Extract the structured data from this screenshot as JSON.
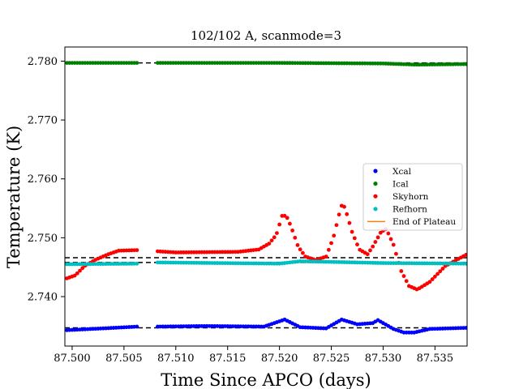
{
  "chart_data": {
    "type": "scatter",
    "title": "102/102 A, scanmode=3",
    "xlabel": "Time Since APCO (days)",
    "ylabel": "Temperature (K)",
    "xlim": [
      87.4993,
      87.5381
    ],
    "ylim": [
      2.7316,
      2.7824
    ],
    "xticks": [
      87.5,
      87.505,
      87.51,
      87.515,
      87.52,
      87.525,
      87.53,
      87.535
    ],
    "xtick_labels": [
      "87.500",
      "87.505",
      "87.510",
      "87.515",
      "87.520",
      "87.525",
      "87.530",
      "87.535"
    ],
    "yticks": [
      2.74,
      2.75,
      2.76,
      2.77,
      2.78
    ],
    "ytick_labels": [
      "2.740",
      "2.750",
      "2.760",
      "2.770",
      "2.780"
    ],
    "grid": false,
    "legend_position": "center-right",
    "x_range": [
      87.4995,
      87.5381
    ],
    "gap": [
      87.5063,
      87.5082
    ],
    "series": [
      {
        "name": "Xcal",
        "color": "#0000ff",
        "kind": "points",
        "keyframes": [
          [
            87.4995,
            2.7343
          ],
          [
            87.503,
            2.7346
          ],
          [
            87.5063,
            2.7349
          ],
          [
            87.5082,
            2.7349
          ],
          [
            87.513,
            2.735
          ],
          [
            87.5185,
            2.7349
          ],
          [
            87.5205,
            2.7361
          ],
          [
            87.522,
            2.7348
          ],
          [
            87.5245,
            2.7346
          ],
          [
            87.526,
            2.7361
          ],
          [
            87.5275,
            2.7353
          ],
          [
            87.529,
            2.7355
          ],
          [
            87.5295,
            2.736
          ],
          [
            87.531,
            2.7345
          ],
          [
            87.532,
            2.7339
          ],
          [
            87.533,
            2.7339
          ],
          [
            87.5345,
            2.7345
          ],
          [
            87.5381,
            2.7347
          ]
        ]
      },
      {
        "name": "Ical",
        "color": "#008000",
        "kind": "points",
        "keyframes": [
          [
            87.4995,
            2.7797
          ],
          [
            87.5063,
            2.7797
          ],
          [
            87.5082,
            2.7797
          ],
          [
            87.52,
            2.7797
          ],
          [
            87.53,
            2.7796
          ],
          [
            87.5332,
            2.7794
          ],
          [
            87.5381,
            2.7795
          ]
        ]
      },
      {
        "name": "Skyhorn",
        "color": "#ff0000",
        "kind": "points",
        "keyframes": [
          [
            87.4995,
            2.7431
          ],
          [
            87.5003,
            2.7436
          ],
          [
            87.5012,
            2.7452
          ],
          [
            87.5023,
            2.7463
          ],
          [
            87.5035,
            2.7472
          ],
          [
            87.5045,
            2.7478
          ],
          [
            87.5063,
            2.7479
          ],
          [
            87.5082,
            2.7477
          ],
          [
            87.51,
            2.7475
          ],
          [
            87.516,
            2.7476
          ],
          [
            87.518,
            2.748
          ],
          [
            87.519,
            2.749
          ],
          [
            87.5197,
            2.7505
          ],
          [
            87.5203,
            2.754
          ],
          [
            87.5208,
            2.7533
          ],
          [
            87.5213,
            2.751
          ],
          [
            87.5218,
            2.7485
          ],
          [
            87.5225,
            2.7468
          ],
          [
            87.5235,
            2.7462
          ],
          [
            87.5245,
            2.7468
          ],
          [
            87.5252,
            2.75
          ],
          [
            87.5258,
            2.7543
          ],
          [
            87.5261,
            2.756
          ],
          [
            87.5265,
            2.754
          ],
          [
            87.527,
            2.751
          ],
          [
            87.5277,
            2.748
          ],
          [
            87.5285,
            2.7472
          ],
          [
            87.529,
            2.7485
          ],
          [
            87.5298,
            2.751
          ],
          [
            87.5303,
            2.7515
          ],
          [
            87.531,
            2.7488
          ],
          [
            87.5317,
            2.7445
          ],
          [
            87.5325,
            2.7418
          ],
          [
            87.5333,
            2.7412
          ],
          [
            87.5345,
            2.7425
          ],
          [
            87.536,
            2.7452
          ],
          [
            87.5381,
            2.7472
          ]
        ]
      },
      {
        "name": "Refhorn",
        "color": "#00bfbf",
        "kind": "points",
        "keyframes": [
          [
            87.4995,
            2.7455
          ],
          [
            87.5063,
            2.7456
          ],
          [
            87.5082,
            2.7458
          ],
          [
            87.52,
            2.7456
          ],
          [
            87.522,
            2.746
          ],
          [
            87.53,
            2.7457
          ],
          [
            87.5381,
            2.7456
          ]
        ]
      },
      {
        "name": "End of Plateau",
        "color": "#ff7f0e",
        "kind": "line"
      }
    ],
    "reference_lines": [
      {
        "y": 2.7797,
        "color": "#000000",
        "style": "dashed"
      },
      {
        "y": 2.7466,
        "color": "#000000",
        "style": "dashed"
      },
      {
        "y": 2.7458,
        "color": "#000000",
        "style": "dashed"
      },
      {
        "y": 2.7347,
        "color": "#000000",
        "style": "dashed"
      }
    ]
  }
}
